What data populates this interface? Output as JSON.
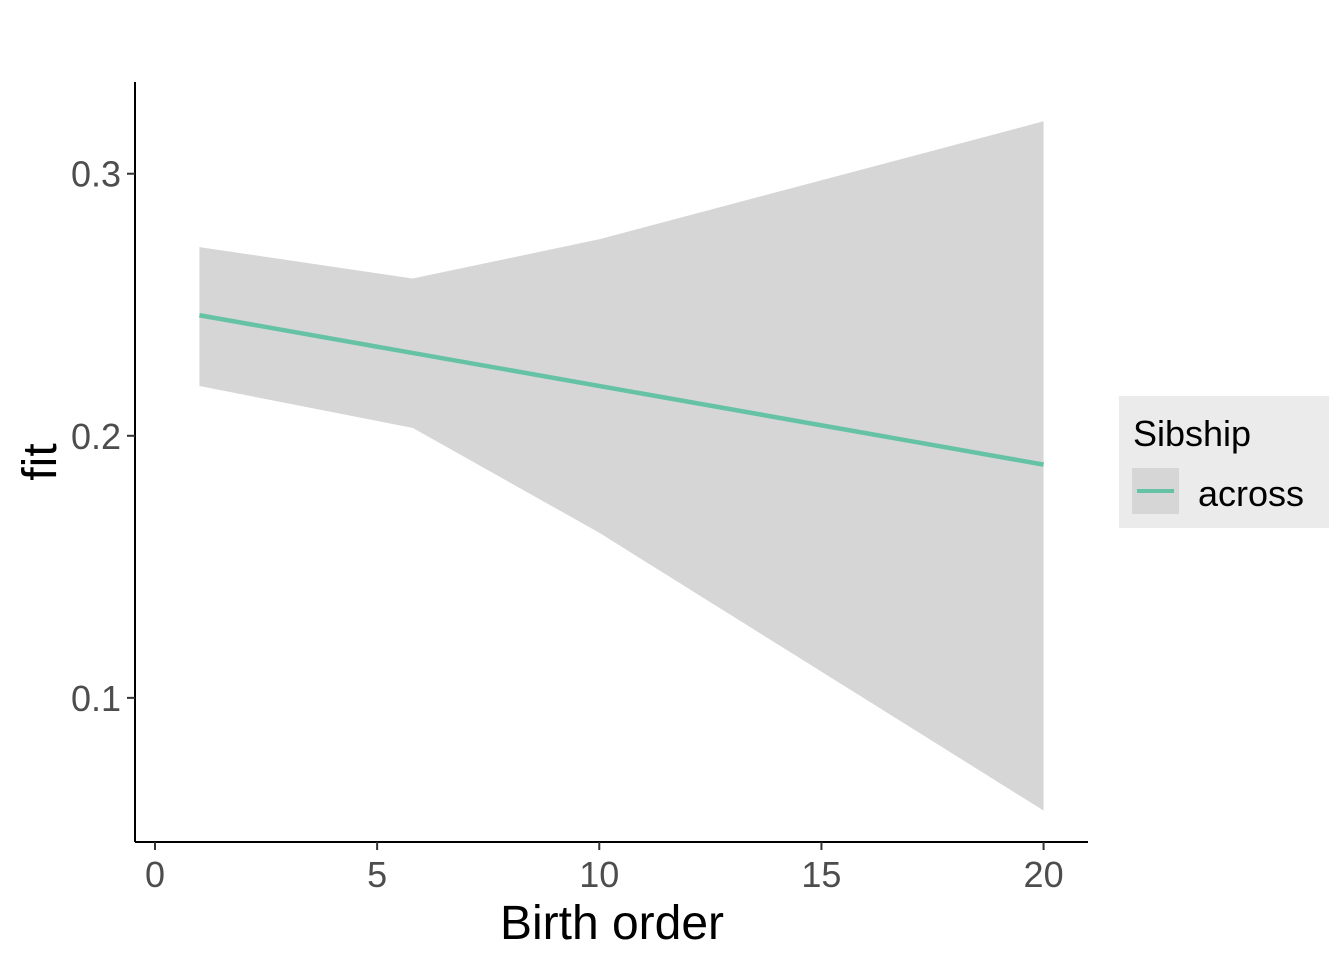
{
  "chart_data": {
    "type": "line",
    "xlabel": "Birth order",
    "ylabel": "fit",
    "xlim": [
      -0.45,
      21.0
    ],
    "ylim": [
      0.045,
      0.335
    ],
    "x_ticks": [
      0,
      5,
      10,
      15,
      20
    ],
    "y_ticks": [
      0.1,
      0.2,
      0.3
    ],
    "x_tick_labels": [
      "0",
      "5",
      "10",
      "15",
      "20"
    ],
    "y_tick_labels": [
      "0.1",
      "0.2",
      "0.3"
    ],
    "grid": false,
    "series": [
      {
        "name": "across",
        "color": "#66c2a5",
        "x": [
          1,
          20
        ],
        "y": [
          0.246,
          0.189
        ]
      }
    ],
    "ribbon": {
      "color": "#d6d6d6",
      "x": [
        1,
        5.8,
        10,
        20
      ],
      "upper": [
        0.272,
        0.26,
        0.275,
        0.32
      ],
      "lower": [
        0.219,
        0.203,
        0.163,
        0.057
      ]
    },
    "legend": {
      "title": "Sibship",
      "placement": "right",
      "background": "#ebebeb",
      "key_background": "#d6d6d6"
    }
  }
}
